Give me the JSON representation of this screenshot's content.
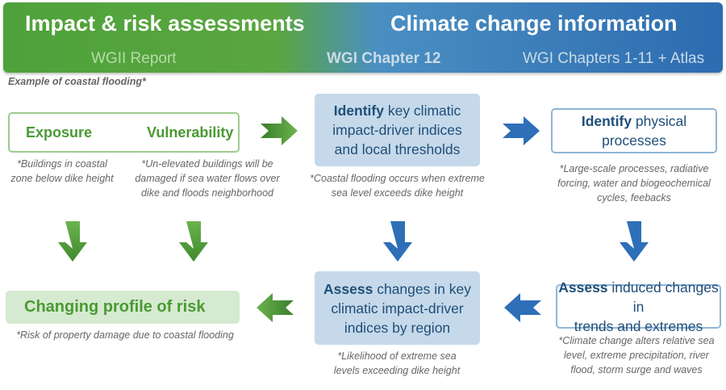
{
  "header": {
    "left_title": "Impact & risk assessments",
    "right_title": "Climate change information",
    "left_sub": "WGII Report",
    "mid_sub": "WGI Chapter 12",
    "right_sub": "WGI Chapters 1-11 + Atlas"
  },
  "example_label": "Example of coastal flooding*",
  "exposure": {
    "title": "Exposure",
    "note_line1": "*Buildings in coastal",
    "note_line2": "zone below dike height"
  },
  "vulnerability": {
    "title": "Vulnerability",
    "note_line1": "*Un-elevated buildings will be",
    "note_line2": "damaged if sea water flows over",
    "note_line3": "dike and floods neighborhood"
  },
  "identify_cid": {
    "keyword": "Identify",
    "text_line1": " key climatic",
    "text_line2": "impact-driver indices",
    "text_line3": "and local thresholds",
    "note_line1": "*Coastal flooding occurs when extreme",
    "note_line2": "sea level exceeds dike height"
  },
  "identify_physical": {
    "keyword": "Identify",
    "text_line1": " physical",
    "text_line2": "processes",
    "note_line1": "*Large-scale processes, radiative",
    "note_line2": "forcing, water and biogeochemical",
    "note_line3": "cycles, feebacks"
  },
  "risk": {
    "title": "Changing profile of risk",
    "note": "*Risk of property damage due to coastal flooding"
  },
  "assess_cid": {
    "keyword": "Assess",
    "text_line1": " changes in key",
    "text_line2": "climatic impact-driver",
    "text_line3": "indices by region",
    "note_line1": "*Likelihood of extreme sea",
    "note_line2": "levels exceeding dike height"
  },
  "assess_induced": {
    "keyword": "Assess",
    "text_line1": " induced changes in",
    "text_line2": "trends and extremes",
    "note_line1": "*Climate change alters relative sea",
    "note_line2": "level, extreme precipitation, river",
    "note_line3": "flood, storm surge and waves"
  },
  "colors": {
    "green": "#4a9a33",
    "blue": "#2e6fb7",
    "light_blue_box": "#c5d9ea",
    "light_green_box": "#d5ead0"
  }
}
